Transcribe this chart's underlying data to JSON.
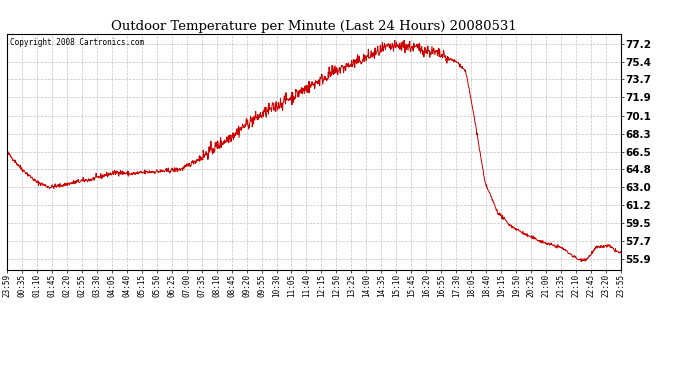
{
  "title": "Outdoor Temperature per Minute (Last 24 Hours) 20080531",
  "copyright_text": "Copyright 2008 Cartronics.com",
  "line_color": "#cc0000",
  "bg_color": "#ffffff",
  "grid_color": "#aaaaaa",
  "yticks": [
    55.9,
    57.7,
    59.5,
    61.2,
    63.0,
    64.8,
    66.5,
    68.3,
    70.1,
    71.9,
    73.7,
    75.4,
    77.2
  ],
  "ylim": [
    54.8,
    78.2
  ],
  "xtick_labels": [
    "23:59",
    "00:35",
    "01:10",
    "01:45",
    "02:20",
    "02:55",
    "03:30",
    "04:05",
    "04:40",
    "05:15",
    "05:50",
    "06:25",
    "07:00",
    "07:35",
    "08:10",
    "08:45",
    "09:20",
    "09:55",
    "10:30",
    "11:05",
    "11:40",
    "12:15",
    "12:50",
    "13:25",
    "14:00",
    "14:35",
    "15:10",
    "15:45",
    "16:20",
    "16:55",
    "17:30",
    "18:05",
    "18:40",
    "19:15",
    "19:50",
    "20:25",
    "21:00",
    "21:35",
    "22:10",
    "22:45",
    "23:20",
    "23:55"
  ],
  "segment_times": [
    0,
    35,
    70,
    100,
    130,
    160,
    200,
    230,
    260,
    290,
    330,
    370,
    410,
    450,
    490,
    530,
    570,
    610,
    650,
    690,
    730,
    770,
    810,
    850,
    890,
    930,
    960,
    990,
    1010,
    1030,
    1055,
    1075,
    1095,
    1120,
    1150,
    1180,
    1220,
    1260,
    1300,
    1340,
    1360,
    1380,
    1410,
    1435
  ],
  "segment_temps": [
    66.5,
    64.8,
    63.5,
    63.0,
    63.2,
    63.5,
    63.8,
    64.2,
    64.5,
    64.3,
    64.5,
    64.6,
    64.8,
    65.8,
    67.0,
    68.2,
    69.5,
    70.5,
    71.5,
    72.5,
    73.5,
    74.5,
    75.2,
    76.0,
    76.8,
    77.0,
    76.8,
    76.5,
    76.2,
    75.8,
    75.4,
    74.5,
    70.0,
    63.5,
    60.5,
    59.2,
    58.2,
    57.5,
    57.0,
    55.8,
    55.9,
    57.0,
    57.2,
    56.5
  ]
}
